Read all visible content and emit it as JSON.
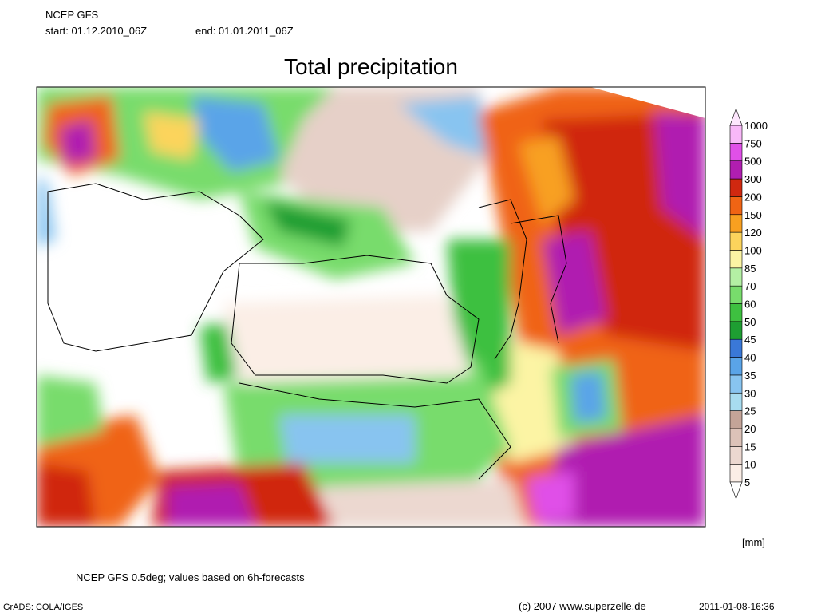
{
  "header": {
    "source": "NCEP GFS",
    "start": "start: 01.12.2010_06Z",
    "end": "end: 01.01.2011_06Z"
  },
  "title": "Total precipitation",
  "legend": {
    "unit": "[mm]",
    "levels": [
      5,
      10,
      15,
      20,
      25,
      30,
      35,
      40,
      45,
      50,
      60,
      70,
      85,
      100,
      120,
      150,
      200,
      300,
      500,
      750,
      1000
    ],
    "colors": [
      "#fbeee6",
      "#ecd8d0",
      "#dcc2b8",
      "#c4a498",
      "#a8dcf0",
      "#88c4f0",
      "#5aa4e8",
      "#3a78d8",
      "#1e9e32",
      "#3ec040",
      "#78dc6c",
      "#b4f0a4",
      "#fcf4a4",
      "#fcd45c",
      "#f8a020",
      "#f06414",
      "#d02810",
      "#b01eb0",
      "#e050e8",
      "#f8b8f8"
    ],
    "below_color": "#ffffff",
    "above_color": "#fde6fd"
  },
  "footer": {
    "note": "NCEP GFS 0.5deg; values based on 6h-forecasts",
    "software": "GrADS: COLA/IGES",
    "copyright": "(c) 2007 www.superzelle.de",
    "timestamp": "2011-01-08-16:36"
  }
}
